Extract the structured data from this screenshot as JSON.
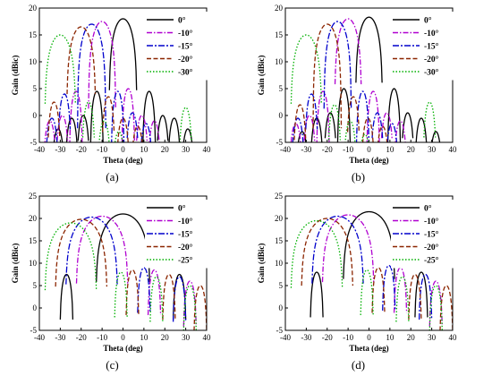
{
  "chart_data": [
    {
      "type": "line",
      "panel_label": "(a)",
      "xlabel": "Theta (deg)",
      "ylabel": "Gain (dBic)",
      "xlim": [
        -40,
        40
      ],
      "ylim": [
        -5,
        20
      ],
      "xticks": [
        -40,
        -30,
        -20,
        -10,
        0,
        10,
        20,
        30,
        40
      ],
      "yticks": [
        -5,
        0,
        5,
        10,
        15,
        20
      ],
      "grid": false,
      "legend_position": "top-right",
      "series": [
        {
          "name": "0°",
          "color": "#000000",
          "dash": "",
          "steer": 0,
          "peak": 18,
          "hw": 6.7,
          "sidelobes": [
            {
              "x": 12.5,
              "y": 4.5
            },
            {
              "x": -12.5,
              "y": 4.5
            },
            {
              "x": 19,
              "y": 0
            },
            {
              "x": -19,
              "y": 0
            },
            {
              "x": 24.5,
              "y": -0.5
            },
            {
              "x": -24.5,
              "y": -0.5
            },
            {
              "x": 31,
              "y": -2.5
            },
            {
              "x": -31,
              "y": -2.5
            }
          ]
        },
        {
          "name": "-10°",
          "color": "#b000d0",
          "dash": "6,2,1.5,2",
          "steer": -10,
          "peak": 17.5,
          "hw": 6.6,
          "sidelobes": [
            {
              "x": 2.5,
              "y": 5
            },
            {
              "x": -22.5,
              "y": 4.5
            },
            {
              "x": 9,
              "y": 0
            },
            {
              "x": -29,
              "y": 0
            },
            {
              "x": 15,
              "y": -1
            },
            {
              "x": -35,
              "y": -1
            }
          ]
        },
        {
          "name": "-15°",
          "color": "#0000cc",
          "dash": "7,2,2,2",
          "steer": -15,
          "peak": 17,
          "hw": 6.8,
          "sidelobes": [
            {
              "x": -2.5,
              "y": 4.5
            },
            {
              "x": -28,
              "y": 4
            },
            {
              "x": 4.5,
              "y": 0.5
            },
            {
              "x": -34,
              "y": -0.5
            },
            {
              "x": 11,
              "y": -1.5
            }
          ]
        },
        {
          "name": "-20°",
          "color": "#8b2500",
          "dash": "5,2.5",
          "steer": -20,
          "peak": 16.5,
          "hw": 7,
          "sidelobes": [
            {
              "x": -7,
              "y": 3.5
            },
            {
              "x": -33,
              "y": 2.5
            },
            {
              "x": 0,
              "y": -0.5
            },
            {
              "x": 7,
              "y": -2
            }
          ]
        },
        {
          "name": "-30°",
          "color": "#00b000",
          "dash": "1.5,2",
          "steer": -30,
          "peak": 15,
          "hw": 7.5,
          "sidelobes": [
            {
              "x": -16.5,
              "y": 2.5
            },
            {
              "x": -9,
              "y": -1
            },
            {
              "x": -2,
              "y": -3
            },
            {
              "x": 30,
              "y": 1.5
            }
          ]
        }
      ]
    },
    {
      "type": "line",
      "panel_label": "(b)",
      "xlabel": "Theta (deg)",
      "ylabel": "Gain (dBic)",
      "xlim": [
        -40,
        40
      ],
      "ylim": [
        -5,
        20
      ],
      "xticks": [
        -40,
        -30,
        -20,
        -10,
        0,
        10,
        20,
        30,
        40
      ],
      "yticks": [
        -5,
        0,
        5,
        10,
        15,
        20
      ],
      "grid": false,
      "legend_position": "top-right",
      "series": [
        {
          "name": "0°",
          "color": "#000000",
          "dash": "",
          "steer": 0,
          "peak": 18.3,
          "hw": 6.5,
          "sidelobes": [
            {
              "x": 12,
              "y": 5
            },
            {
              "x": -12,
              "y": 5
            },
            {
              "x": 18.5,
              "y": 0.5
            },
            {
              "x": -18.5,
              "y": 0.5
            },
            {
              "x": 25,
              "y": -0.5
            },
            {
              "x": -25,
              "y": -0.5
            },
            {
              "x": 32,
              "y": -3
            },
            {
              "x": -32,
              "y": -3
            }
          ]
        },
        {
          "name": "-10°",
          "color": "#b000d0",
          "dash": "6,2,1.5,2",
          "steer": -10,
          "peak": 18,
          "hw": 6.5,
          "sidelobes": [
            {
              "x": 2,
              "y": 4.5
            },
            {
              "x": -22,
              "y": 4.5
            },
            {
              "x": 8.5,
              "y": 0.5
            },
            {
              "x": -28.5,
              "y": 0
            },
            {
              "x": 15,
              "y": -1
            },
            {
              "x": -35,
              "y": -1.5
            }
          ]
        },
        {
          "name": "-15°",
          "color": "#0000cc",
          "dash": "7,2,2,2",
          "steer": -15,
          "peak": 17.5,
          "hw": 6.6,
          "sidelobes": [
            {
              "x": -3,
              "y": 4.5
            },
            {
              "x": -27.5,
              "y": 4
            },
            {
              "x": 4,
              "y": 0.5
            },
            {
              "x": -34,
              "y": -0.5
            },
            {
              "x": 11,
              "y": -1.5
            }
          ]
        },
        {
          "name": "-20°",
          "color": "#8b2500",
          "dash": "5,2.5",
          "steer": -20,
          "peak": 17,
          "hw": 6.8,
          "sidelobes": [
            {
              "x": -7.5,
              "y": 3.5
            },
            {
              "x": -33,
              "y": 2
            },
            {
              "x": -0.5,
              "y": -0.5
            },
            {
              "x": 6.5,
              "y": -2
            }
          ]
        },
        {
          "name": "-30°",
          "color": "#00b000",
          "dash": "1.5,2",
          "steer": -30,
          "peak": 15,
          "hw": 7.5,
          "sidelobes": [
            {
              "x": -16.5,
              "y": 2
            },
            {
              "x": -9,
              "y": -1
            },
            {
              "x": -2,
              "y": -3.5
            },
            {
              "x": 29,
              "y": 2.5
            }
          ]
        }
      ]
    },
    {
      "type": "line",
      "panel_label": "(c)",
      "xlabel": "Theta (deg)",
      "ylabel": "Gain (dBic)",
      "xlim": [
        -40,
        40
      ],
      "ylim": [
        -5,
        25
      ],
      "xticks": [
        -40,
        -30,
        -20,
        -10,
        0,
        10,
        20,
        30,
        40
      ],
      "yticks": [
        -5,
        0,
        5,
        10,
        15,
        20,
        25
      ],
      "grid": false,
      "legend_position": "top-right",
      "series": [
        {
          "name": "0°",
          "color": "#000000",
          "dash": "",
          "steer": 0,
          "peak": 21,
          "hw": 13,
          "sidelobes": [
            {
              "x": 27,
              "y": 7.5
            },
            {
              "x": -27,
              "y": 7.5
            }
          ]
        },
        {
          "name": "-10°",
          "color": "#b000d0",
          "dash": "6,2,1.5,2",
          "steer": -10,
          "peak": 20.5,
          "hw": 12.5,
          "sidelobes": [
            {
              "x": 15,
              "y": 8.5
            },
            {
              "x": 32,
              "y": 6
            }
          ]
        },
        {
          "name": "-15°",
          "color": "#0000cc",
          "dash": "7,2,2,2",
          "steer": -15,
          "peak": 20.3,
          "hw": 12.5,
          "sidelobes": [
            {
              "x": 10,
              "y": 9
            },
            {
              "x": 27,
              "y": 7
            }
          ]
        },
        {
          "name": "-20°",
          "color": "#8b2500",
          "dash": "5,2.5",
          "steer": -20,
          "peak": 19.8,
          "hw": 12.5,
          "sidelobes": [
            {
              "x": 4.5,
              "y": 8.5
            },
            {
              "x": 22,
              "y": 7.5
            },
            {
              "x": 37,
              "y": 5
            }
          ]
        },
        {
          "name": "-25°",
          "color": "#00b000",
          "dash": "1.5,2",
          "steer": -25,
          "peak": 19,
          "hw": 12.5,
          "sidelobes": [
            {
              "x": -1,
              "y": 8
            },
            {
              "x": 16,
              "y": 7
            },
            {
              "x": 32,
              "y": 5
            }
          ]
        }
      ]
    },
    {
      "type": "line",
      "panel_label": "(d)",
      "xlabel": "Theta (deg)",
      "ylabel": "Gain (dBic)",
      "xlim": [
        -40,
        40
      ],
      "ylim": [
        -5,
        25
      ],
      "xticks": [
        -40,
        -30,
        -20,
        -10,
        0,
        10,
        20,
        30,
        40
      ],
      "yticks": [
        -5,
        0,
        5,
        10,
        15,
        20,
        25
      ],
      "grid": false,
      "legend_position": "top-right",
      "series": [
        {
          "name": "0°",
          "color": "#000000",
          "dash": "",
          "steer": 0,
          "peak": 21.5,
          "hw": 12.5,
          "sidelobes": [
            {
              "x": 25,
              "y": 8
            },
            {
              "x": -25,
              "y": 8
            }
          ]
        },
        {
          "name": "-10°",
          "color": "#b000d0",
          "dash": "6,2,1.5,2",
          "steer": -10,
          "peak": 20.8,
          "hw": 12.5,
          "sidelobes": [
            {
              "x": 15,
              "y": 9
            },
            {
              "x": 32,
              "y": 6
            }
          ]
        },
        {
          "name": "-15°",
          "color": "#0000cc",
          "dash": "7,2,2,2",
          "steer": -15,
          "peak": 20.5,
          "hw": 12.5,
          "sidelobes": [
            {
              "x": 9.5,
              "y": 9.5
            },
            {
              "x": 27,
              "y": 7.5
            }
          ]
        },
        {
          "name": "-20°",
          "color": "#8b2500",
          "dash": "5,2.5",
          "steer": -20,
          "peak": 20,
          "hw": 12.5,
          "sidelobes": [
            {
              "x": 4.5,
              "y": 9
            },
            {
              "x": 22,
              "y": 7.5
            },
            {
              "x": 37,
              "y": 5
            }
          ]
        },
        {
          "name": "-25°",
          "color": "#00b000",
          "dash": "1.5,2",
          "steer": -25,
          "peak": 19.5,
          "hw": 12.5,
          "sidelobes": [
            {
              "x": -1,
              "y": 8.5
            },
            {
              "x": 16,
              "y": 7
            },
            {
              "x": 32,
              "y": 5
            }
          ]
        }
      ]
    }
  ]
}
